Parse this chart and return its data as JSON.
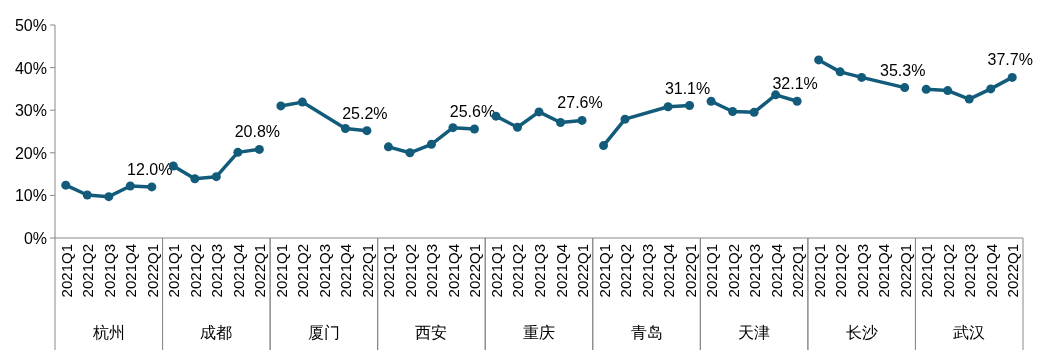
{
  "chart_data": {
    "type": "line",
    "categories": [
      "2021Q1",
      "2021Q2",
      "2021Q3",
      "2021Q4",
      "2022Q1",
      "2021Q1",
      "2021Q2",
      "2021Q3",
      "2021Q4",
      "2022Q1",
      "2021Q1",
      "2021Q2",
      "2021Q3",
      "2021Q4",
      "2022Q1",
      "2021Q1",
      "2021Q2",
      "2021Q3",
      "2021Q4",
      "2022Q1",
      "2021Q1",
      "2021Q2",
      "2021Q3",
      "2021Q4",
      "2022Q1",
      "2021Q1",
      "2021Q2",
      "2021Q3",
      "2021Q4",
      "2022Q1",
      "2021Q1",
      "2021Q2",
      "2021Q3",
      "2021Q4",
      "2022Q1",
      "2021Q1",
      "2021Q2",
      "2021Q3",
      "2021Q4",
      "2022Q1",
      "2021Q1",
      "2021Q2",
      "2021Q3",
      "2021Q4",
      "2022Q1"
    ],
    "series": [
      {
        "color": "#125b7a",
        "values": [
          12.4,
          10.1,
          9.7,
          12.2,
          12.0,
          null,
          null,
          null,
          null,
          null,
          null,
          null,
          null,
          null,
          null,
          null,
          null,
          null,
          null,
          null,
          null,
          null,
          null,
          null,
          null,
          null,
          null,
          null,
          null,
          null,
          null,
          null,
          null,
          null,
          null,
          null,
          null,
          null,
          null,
          null,
          null,
          null,
          null,
          null,
          null
        ],
        "value_labels": [
          null,
          null,
          null,
          null,
          "12.0%",
          null,
          null,
          null,
          null,
          null,
          null,
          null,
          null,
          null,
          null,
          null,
          null,
          null,
          null,
          null,
          null,
          null,
          null,
          null,
          null,
          null,
          null,
          null,
          null,
          null,
          null,
          null,
          null,
          null,
          null,
          null,
          null,
          null,
          null,
          null,
          null,
          null,
          null,
          null,
          null
        ]
      },
      {
        "color": "#125b7a",
        "values": [
          null,
          null,
          null,
          null,
          null,
          16.9,
          13.9,
          14.4,
          20.1,
          20.8,
          null,
          null,
          null,
          null,
          null,
          null,
          null,
          null,
          null,
          null,
          null,
          null,
          null,
          null,
          null,
          null,
          null,
          null,
          null,
          null,
          null,
          null,
          null,
          null,
          null,
          null,
          null,
          null,
          null,
          null,
          null,
          null,
          null,
          null,
          null
        ],
        "value_labels": [
          null,
          null,
          null,
          null,
          null,
          null,
          null,
          null,
          null,
          "20.8%",
          null,
          null,
          null,
          null,
          null,
          null,
          null,
          null,
          null,
          null,
          null,
          null,
          null,
          null,
          null,
          null,
          null,
          null,
          null,
          null,
          null,
          null,
          null,
          null,
          null,
          null,
          null,
          null,
          null,
          null,
          null,
          null,
          null,
          null,
          null
        ]
      },
      {
        "color": "#125b7a",
        "values": [
          null,
          null,
          null,
          null,
          null,
          null,
          null,
          null,
          null,
          null,
          31.0,
          31.9,
          null,
          25.7,
          25.2,
          null,
          null,
          null,
          null,
          null,
          null,
          null,
          null,
          null,
          null,
          null,
          null,
          null,
          null,
          null,
          null,
          null,
          null,
          null,
          null,
          null,
          null,
          null,
          null,
          null,
          null,
          null,
          null,
          null,
          null
        ],
        "value_labels": [
          null,
          null,
          null,
          null,
          null,
          null,
          null,
          null,
          null,
          null,
          null,
          null,
          null,
          null,
          "25.2%",
          null,
          null,
          null,
          null,
          null,
          null,
          null,
          null,
          null,
          null,
          null,
          null,
          null,
          null,
          null,
          null,
          null,
          null,
          null,
          null,
          null,
          null,
          null,
          null,
          null,
          null,
          null,
          null,
          null,
          null
        ]
      },
      {
        "color": "#125b7a",
        "values": [
          null,
          null,
          null,
          null,
          null,
          null,
          null,
          null,
          null,
          null,
          null,
          null,
          null,
          null,
          null,
          21.4,
          20.0,
          22.0,
          25.9,
          25.6,
          null,
          null,
          null,
          null,
          null,
          null,
          null,
          null,
          null,
          null,
          null,
          null,
          null,
          null,
          null,
          null,
          null,
          null,
          null,
          null,
          null,
          null,
          null,
          null,
          null
        ],
        "value_labels": [
          null,
          null,
          null,
          null,
          null,
          null,
          null,
          null,
          null,
          null,
          null,
          null,
          null,
          null,
          null,
          null,
          null,
          null,
          null,
          "25.6%",
          null,
          null,
          null,
          null,
          null,
          null,
          null,
          null,
          null,
          null,
          null,
          null,
          null,
          null,
          null,
          null,
          null,
          null,
          null,
          null,
          null,
          null,
          null,
          null,
          null
        ]
      },
      {
        "color": "#125b7a",
        "values": [
          null,
          null,
          null,
          null,
          null,
          null,
          null,
          null,
          null,
          null,
          null,
          null,
          null,
          null,
          null,
          null,
          null,
          null,
          null,
          null,
          28.6,
          26.0,
          29.6,
          27.1,
          27.6,
          null,
          null,
          null,
          null,
          null,
          null,
          null,
          null,
          null,
          null,
          null,
          null,
          null,
          null,
          null,
          null,
          null,
          null,
          null,
          null
        ],
        "value_labels": [
          null,
          null,
          null,
          null,
          null,
          null,
          null,
          null,
          null,
          null,
          null,
          null,
          null,
          null,
          null,
          null,
          null,
          null,
          null,
          null,
          null,
          null,
          null,
          null,
          "27.6%",
          null,
          null,
          null,
          null,
          null,
          null,
          null,
          null,
          null,
          null,
          null,
          null,
          null,
          null,
          null,
          null,
          null,
          null,
          null,
          null
        ]
      },
      {
        "color": "#125b7a",
        "values": [
          null,
          null,
          null,
          null,
          null,
          null,
          null,
          null,
          null,
          null,
          null,
          null,
          null,
          null,
          null,
          null,
          null,
          null,
          null,
          null,
          null,
          null,
          null,
          null,
          null,
          21.7,
          27.9,
          null,
          30.8,
          31.1,
          null,
          null,
          null,
          null,
          null,
          null,
          null,
          null,
          null,
          null,
          null,
          null,
          null,
          null,
          null
        ],
        "value_labels": [
          null,
          null,
          null,
          null,
          null,
          null,
          null,
          null,
          null,
          null,
          null,
          null,
          null,
          null,
          null,
          null,
          null,
          null,
          null,
          null,
          null,
          null,
          null,
          null,
          null,
          null,
          null,
          null,
          null,
          "31.1%",
          null,
          null,
          null,
          null,
          null,
          null,
          null,
          null,
          null,
          null,
          null,
          null,
          null,
          null,
          null
        ]
      },
      {
        "color": "#125b7a",
        "values": [
          null,
          null,
          null,
          null,
          null,
          null,
          null,
          null,
          null,
          null,
          null,
          null,
          null,
          null,
          null,
          null,
          null,
          null,
          null,
          null,
          null,
          null,
          null,
          null,
          null,
          null,
          null,
          null,
          null,
          null,
          32.1,
          29.7,
          29.5,
          33.6,
          32.1,
          null,
          null,
          null,
          null,
          null,
          null,
          null,
          null,
          null,
          null
        ],
        "value_labels": [
          null,
          null,
          null,
          null,
          null,
          null,
          null,
          null,
          null,
          null,
          null,
          null,
          null,
          null,
          null,
          null,
          null,
          null,
          null,
          null,
          null,
          null,
          null,
          null,
          null,
          null,
          null,
          null,
          null,
          null,
          null,
          null,
          null,
          null,
          "32.1%",
          null,
          null,
          null,
          null,
          null,
          null,
          null,
          null,
          null,
          null
        ]
      },
      {
        "color": "#125b7a",
        "values": [
          null,
          null,
          null,
          null,
          null,
          null,
          null,
          null,
          null,
          null,
          null,
          null,
          null,
          null,
          null,
          null,
          null,
          null,
          null,
          null,
          null,
          null,
          null,
          null,
          null,
          null,
          null,
          null,
          null,
          null,
          null,
          null,
          null,
          null,
          null,
          41.8,
          39.0,
          37.7,
          null,
          35.3,
          null,
          null,
          null,
          null,
          null
        ],
        "value_labels": [
          null,
          null,
          null,
          null,
          null,
          null,
          null,
          null,
          null,
          null,
          null,
          null,
          null,
          null,
          null,
          null,
          null,
          null,
          null,
          null,
          null,
          null,
          null,
          null,
          null,
          null,
          null,
          null,
          null,
          null,
          null,
          null,
          null,
          null,
          null,
          null,
          null,
          null,
          null,
          "35.3%",
          null,
          null,
          null,
          null,
          null
        ]
      },
      {
        "color": "#125b7a",
        "values": [
          null,
          null,
          null,
          null,
          null,
          null,
          null,
          null,
          null,
          null,
          null,
          null,
          null,
          null,
          null,
          null,
          null,
          null,
          null,
          null,
          null,
          null,
          null,
          null,
          null,
          null,
          null,
          null,
          null,
          null,
          null,
          null,
          null,
          null,
          null,
          null,
          null,
          null,
          null,
          null,
          34.9,
          34.6,
          32.6,
          35.0,
          37.7
        ],
        "value_labels": [
          null,
          null,
          null,
          null,
          null,
          null,
          null,
          null,
          null,
          null,
          null,
          null,
          null,
          null,
          null,
          null,
          null,
          null,
          null,
          null,
          null,
          null,
          null,
          null,
          null,
          null,
          null,
          null,
          null,
          null,
          null,
          null,
          null,
          null,
          null,
          null,
          null,
          null,
          null,
          null,
          null,
          null,
          null,
          null,
          "37.7%"
        ]
      }
    ],
    "annotations": [
      "杭州",
      "成都",
      "厦门",
      "西安",
      "重庆",
      "青岛",
      "天津",
      "长沙",
      "武汉"
    ],
    "ylim": [
      0,
      50
    ],
    "yticks": [
      {
        "value": 0,
        "label": "0%"
      },
      {
        "value": 10,
        "label": "10%"
      },
      {
        "value": 20,
        "label": "20%"
      },
      {
        "value": 30,
        "label": "30%"
      },
      {
        "value": 40,
        "label": "40%"
      },
      {
        "value": 50,
        "label": "50%"
      }
    ],
    "marker": "circle",
    "line_style": "solid",
    "grid": false
  }
}
